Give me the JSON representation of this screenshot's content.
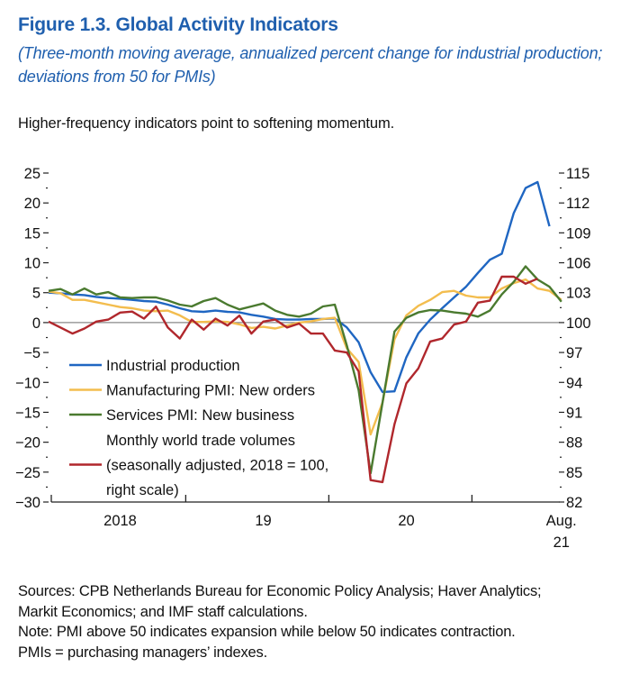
{
  "header": {
    "title": "Figure 1.3.  Global Activity Indicators",
    "subtitle": "(Three-month moving average, annualized percent change for industrial production; deviations from 50 for PMIs)",
    "lead": "Higher-frequency indicators point to softening momentum."
  },
  "footer": {
    "lines": [
      "Sources: CPB Netherlands Bureau for Economic Policy Analysis; Haver Analytics;",
      "Markit Economics; and IMF staff calculations.",
      "Note: PMI above 50 indicates expansion while below 50 indicates contraction.",
      "PMIs = purchasing managers’ indexes."
    ]
  },
  "chart_data": {
    "type": "line",
    "x_start": "2018-01",
    "x_end": "2021-08",
    "x_tick_labels": [
      {
        "label": "2018",
        "at": "2018-07"
      },
      {
        "label": "19",
        "at": "2019-07"
      },
      {
        "label": "20",
        "at": "2020-07"
      },
      {
        "label": "Aug.",
        "label2": "21",
        "at": "2021-08"
      }
    ],
    "year_separators": [
      "2019-01",
      "2020-01",
      "2021-01"
    ],
    "ylim_left": [
      -30,
      25
    ],
    "yticks_left": [
      "25",
      "20",
      "15",
      "10",
      "5",
      "0",
      "−5",
      "−10",
      "−15",
      "−20",
      "−25",
      "−30"
    ],
    "ylim_right": [
      82,
      115
    ],
    "yticks_right": [
      "115",
      "112",
      "109",
      "106",
      "103",
      "100",
      "97",
      "94",
      "91",
      "88",
      "85",
      "82"
    ],
    "zero_line": true,
    "grid": false,
    "legend_placement": "lower-left",
    "series": [
      {
        "name_lines": [
          "Industrial production"
        ],
        "color": "#1f66c2",
        "axis": "left",
        "values": [
          5.0,
          4.9,
          4.7,
          4.6,
          4.3,
          4.1,
          4.0,
          3.8,
          3.6,
          3.5,
          3.0,
          2.4,
          1.9,
          1.8,
          2.0,
          1.8,
          1.7,
          1.3,
          1.0,
          0.6,
          0.5,
          0.5,
          0.6,
          0.6,
          0.7,
          -0.8,
          -3.3,
          -8.3,
          -11.6,
          -11.5,
          -5.8,
          -1.8,
          0.5,
          2.4,
          4.2,
          6.0,
          8.3,
          10.5,
          11.5,
          18.3,
          22.5,
          23.5,
          16.1,
          null
        ]
      },
      {
        "name_lines": [
          "Manufacturing PMI: New orders"
        ],
        "color": "#f3bd4e",
        "axis": "left",
        "values": [
          5.2,
          4.9,
          3.8,
          3.8,
          3.4,
          3.0,
          2.6,
          2.4,
          2.0,
          1.9,
          2.0,
          1.2,
          0.1,
          0.1,
          0.2,
          0.1,
          -0.3,
          -0.9,
          -0.7,
          -1.0,
          -0.5,
          0.0,
          0.2,
          0.6,
          0.8,
          -4.3,
          -6.6,
          -18.7,
          -13.4,
          -2.8,
          1.2,
          2.8,
          3.8,
          5.1,
          5.3,
          4.5,
          4.2,
          4.2,
          5.7,
          6.6,
          7.2,
          5.7,
          5.3,
          3.8
        ]
      },
      {
        "name_lines": [
          "Services PMI: New business"
        ],
        "color": "#4a7a2f",
        "axis": "left",
        "values": [
          5.3,
          5.6,
          4.7,
          5.7,
          4.7,
          5.1,
          4.2,
          4.1,
          4.2,
          4.2,
          3.7,
          3.0,
          2.7,
          3.6,
          4.1,
          3.0,
          2.2,
          2.7,
          3.2,
          2.0,
          1.3,
          1.0,
          1.5,
          2.7,
          3.0,
          -3.8,
          -11.3,
          -25.2,
          -13.4,
          -1.5,
          0.8,
          1.7,
          2.1,
          2.0,
          1.7,
          1.5,
          1.0,
          2.0,
          4.7,
          6.8,
          9.4,
          7.2,
          6.0,
          3.5
        ]
      },
      {
        "name_lines": [
          "Monthly world trade volumes",
          "(seasonally adjusted, 2018 = 100,",
          "right scale)"
        ],
        "color": "#b0272c",
        "axis": "right",
        "values": [
          100.1,
          99.5,
          98.9,
          99.4,
          100.1,
          100.3,
          101.0,
          101.1,
          100.4,
          101.6,
          99.5,
          98.4,
          100.3,
          99.3,
          100.4,
          99.7,
          100.7,
          98.9,
          100.1,
          100.3,
          99.5,
          99.9,
          98.9,
          98.9,
          97.2,
          97.0,
          95.1,
          84.2,
          84.0,
          89.8,
          93.9,
          95.4,
          98.1,
          98.4,
          99.8,
          100.1,
          102.0,
          102.2,
          104.6,
          104.6,
          103.9,
          104.4,
          null,
          null
        ]
      }
    ]
  }
}
